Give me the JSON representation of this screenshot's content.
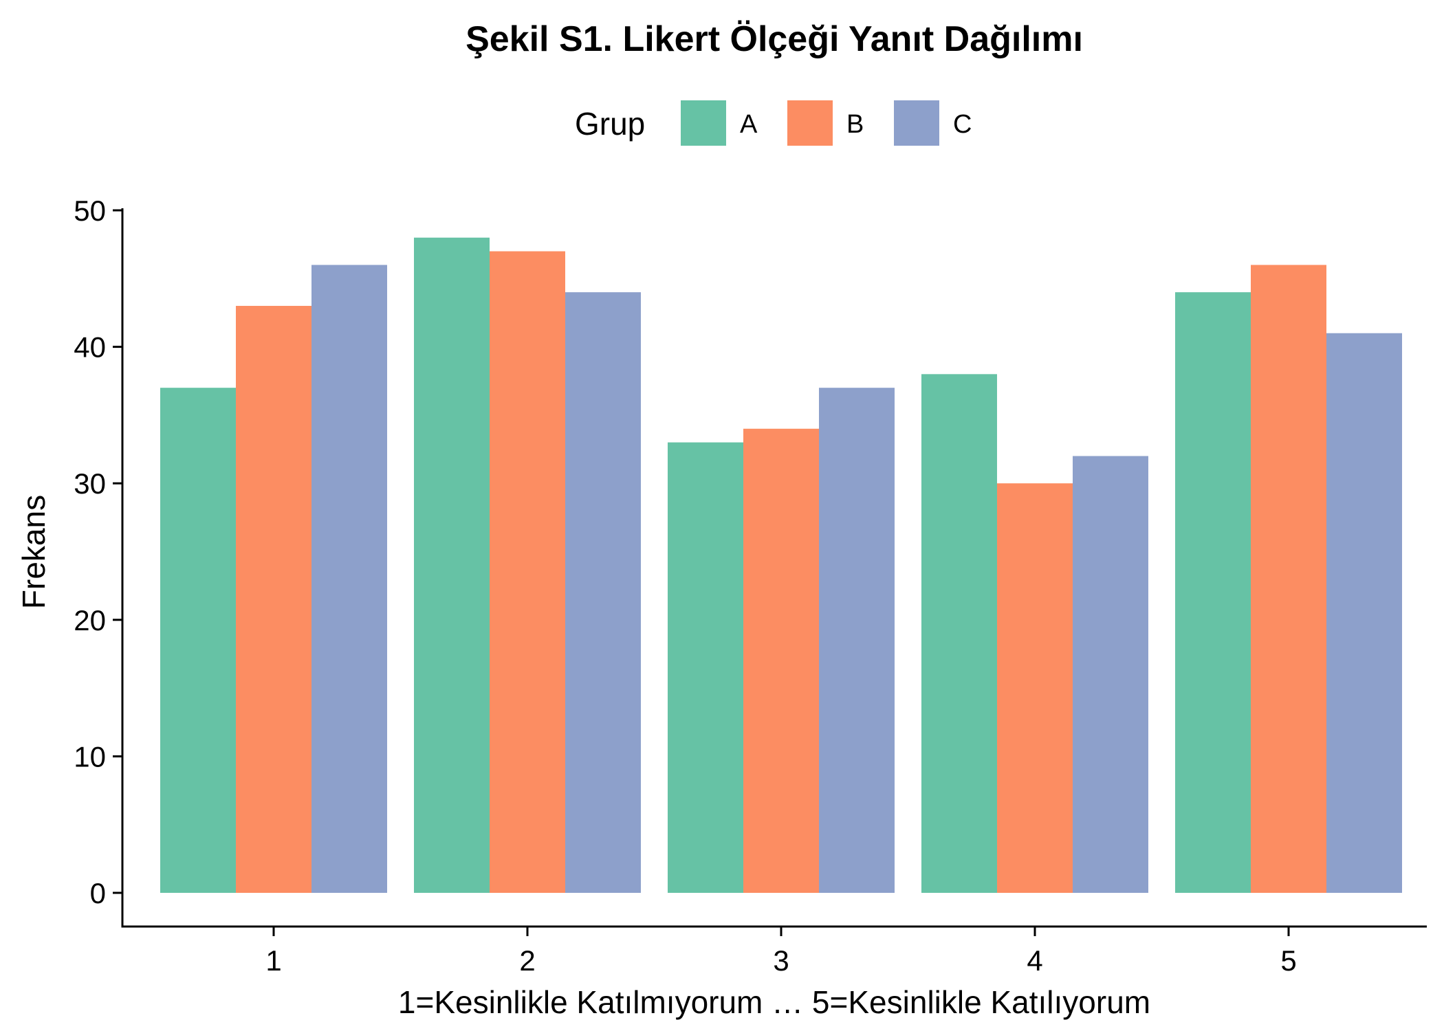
{
  "chart_data": {
    "type": "bar",
    "title": "Şekil S1. Likert Ölçeği Yanıt Dağılımı",
    "xlabel": "1=Kesinlikle Katılmıyorum … 5=Kesinlikle Katılıyorum",
    "ylabel": "Frekans",
    "categories": [
      "1",
      "2",
      "3",
      "4",
      "5"
    ],
    "series": [
      {
        "name": "A",
        "color": "#66c2a5",
        "values": [
          37,
          48,
          33,
          38,
          44
        ]
      },
      {
        "name": "B",
        "color": "#fc8d62",
        "values": [
          43,
          47,
          34,
          30,
          46
        ]
      },
      {
        "name": "C",
        "color": "#8da0cb",
        "values": [
          46,
          44,
          37,
          32,
          41
        ]
      }
    ],
    "yticks": [
      0,
      10,
      20,
      30,
      40,
      50
    ],
    "ylim": [
      0,
      50
    ],
    "legend": {
      "title": "Grup",
      "position": "top"
    },
    "grid": false
  }
}
